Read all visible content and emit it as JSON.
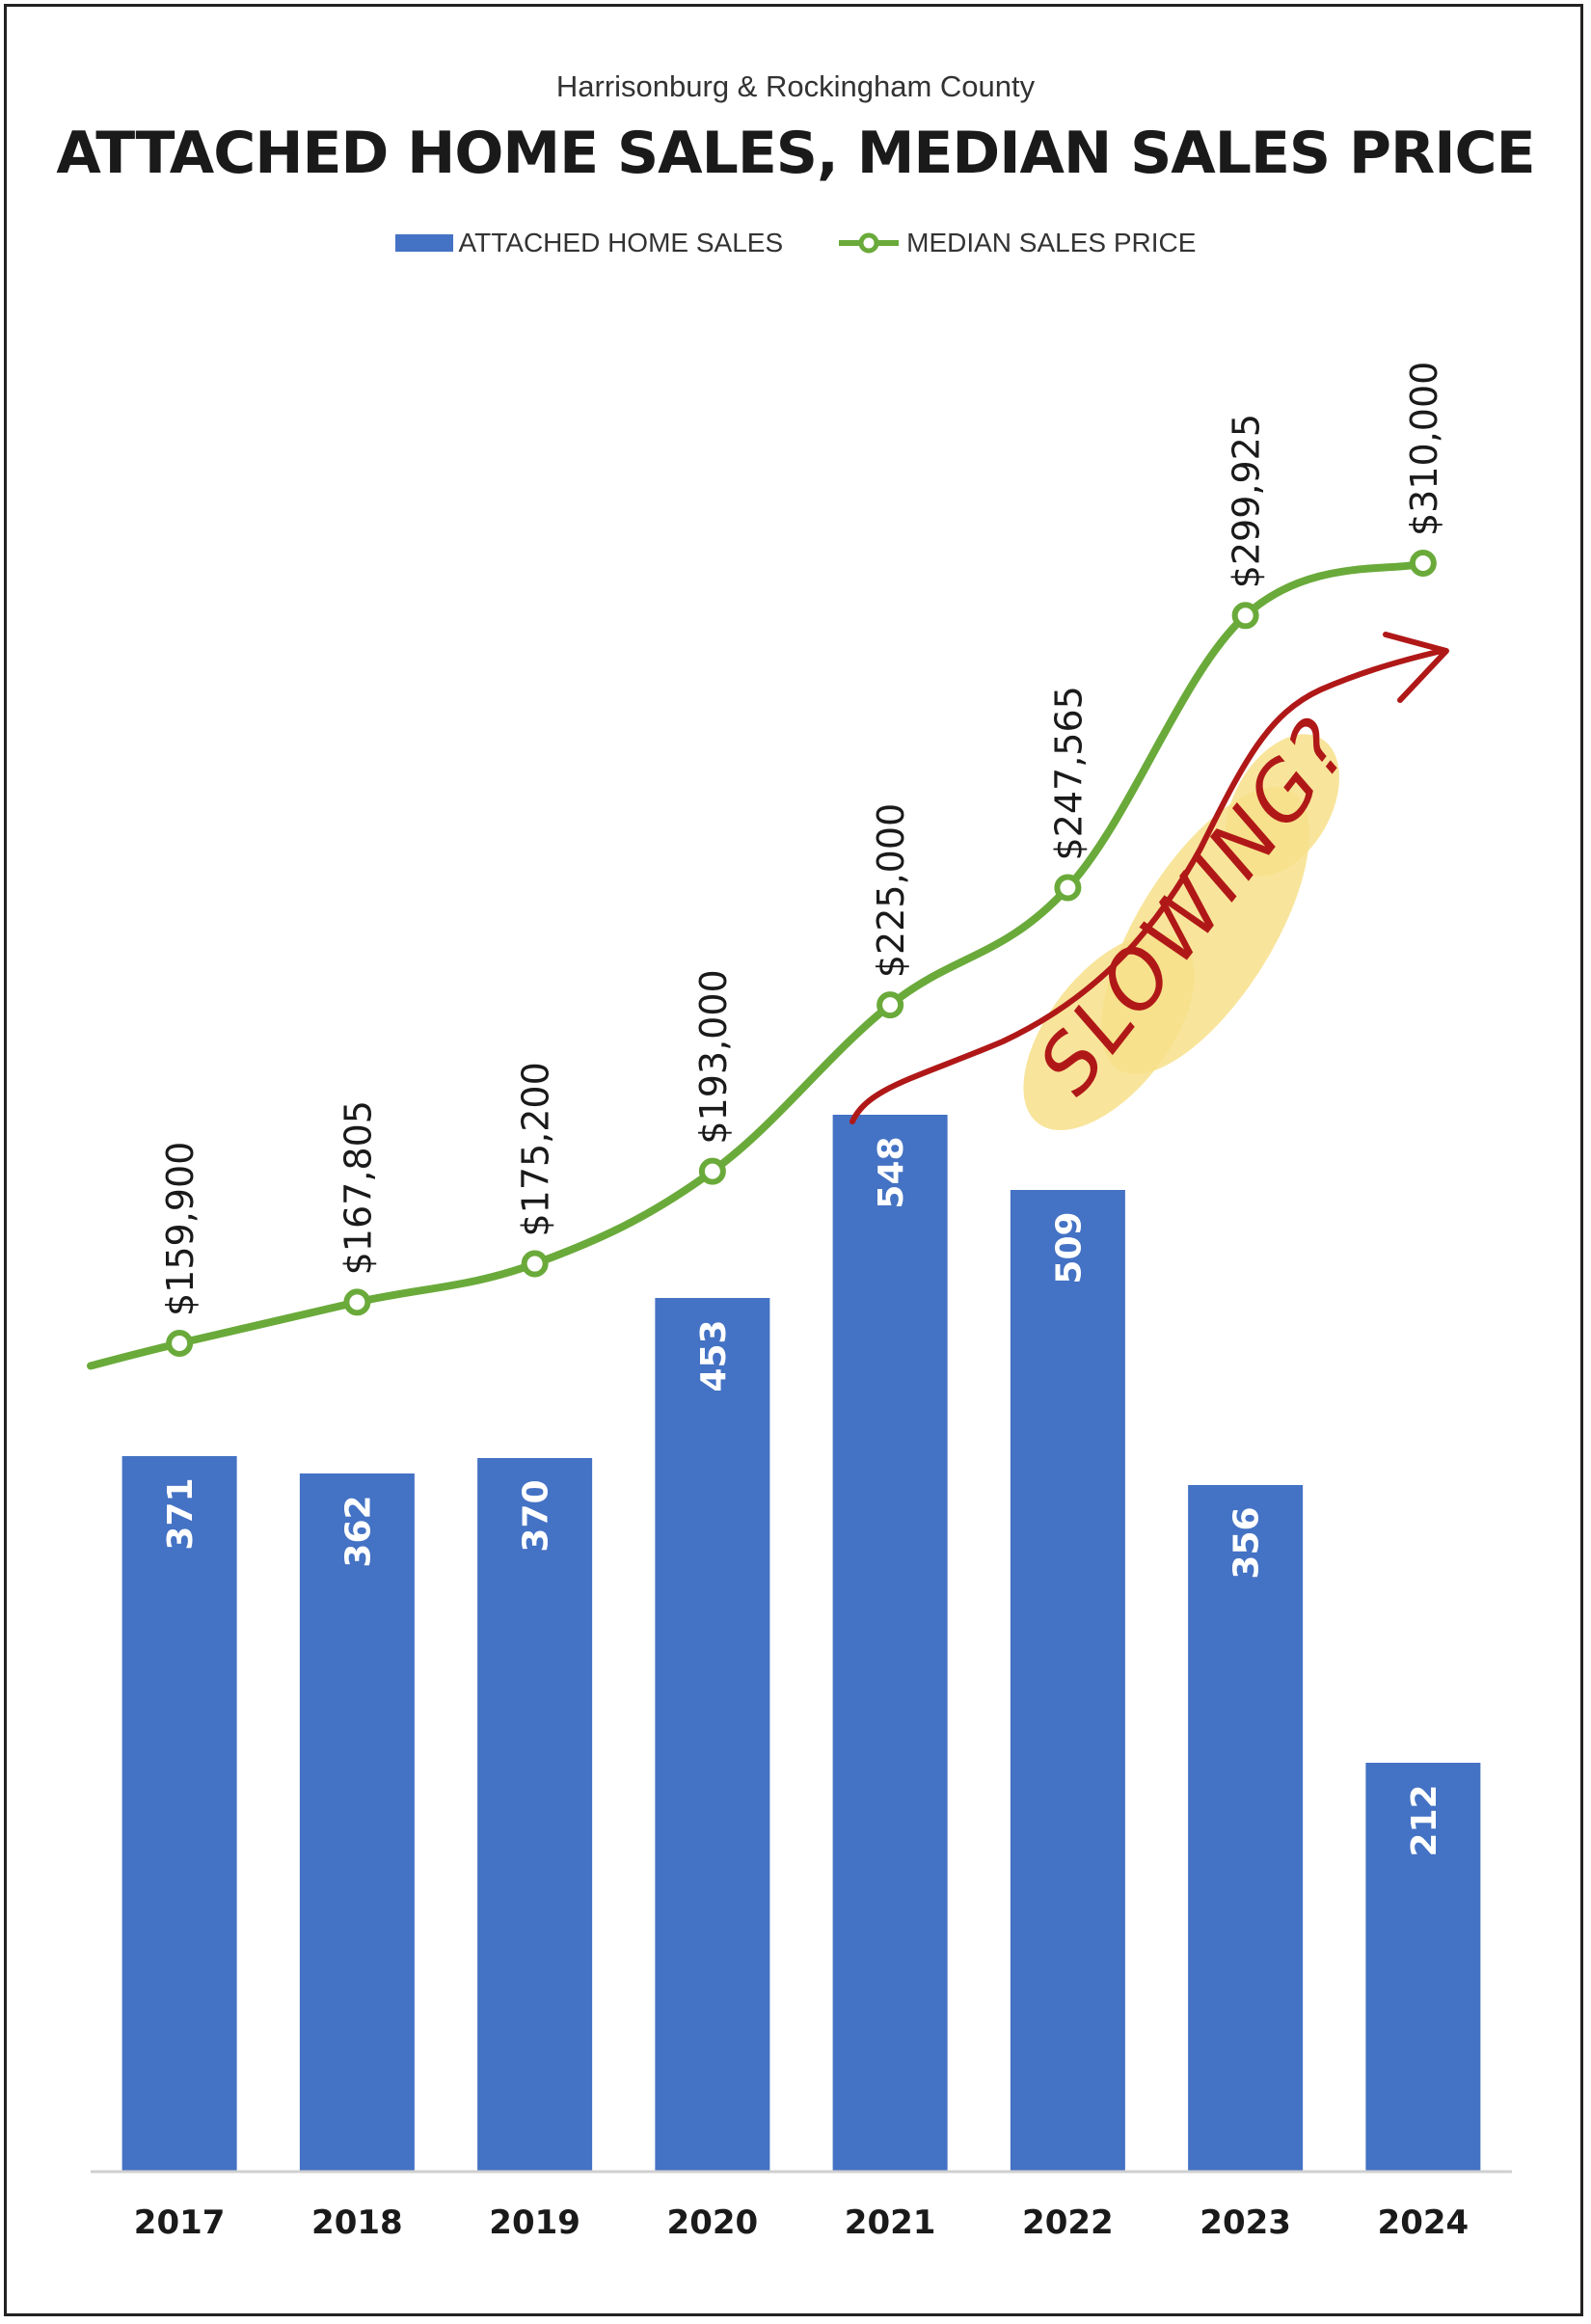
{
  "header": {
    "subtitle": "Harrisonburg & Rockingham County",
    "title": "ATTACHED HOME SALES, MEDIAN SALES PRICE"
  },
  "legend": {
    "bars_label": "ATTACHED HOME SALES",
    "line_label": "MEDIAN SALES PRICE"
  },
  "annotation": {
    "text": "SLOWING?",
    "arrow_color": "#b01818",
    "highlight_color": "#f7e08a"
  },
  "colors": {
    "bar": "#4472c4",
    "line": "#6aaa3a",
    "bar_label": "#ffffff",
    "price_label": "#1a1a1a"
  },
  "chart_data": {
    "type": "bar",
    "categories": [
      "2017",
      "2018",
      "2019",
      "2020",
      "2021",
      "2022",
      "2023",
      "2024"
    ],
    "series": [
      {
        "name": "ATTACHED HOME SALES",
        "type": "bar",
        "values": [
          371,
          362,
          370,
          453,
          548,
          509,
          356,
          212
        ],
        "labels": [
          "371",
          "362",
          "370",
          "453",
          "548",
          "509",
          "356",
          "212"
        ]
      },
      {
        "name": "MEDIAN SALES PRICE",
        "type": "line",
        "values": [
          159900,
          167805,
          175200,
          193000,
          225000,
          247565,
          299925,
          310000
        ],
        "labels": [
          "$159,900",
          "$167,805",
          "$175,200",
          "$193,000",
          "$225,000",
          "$247,565",
          "$299,925",
          "$310,000"
        ]
      }
    ],
    "legend_position": "top",
    "grid": false
  }
}
